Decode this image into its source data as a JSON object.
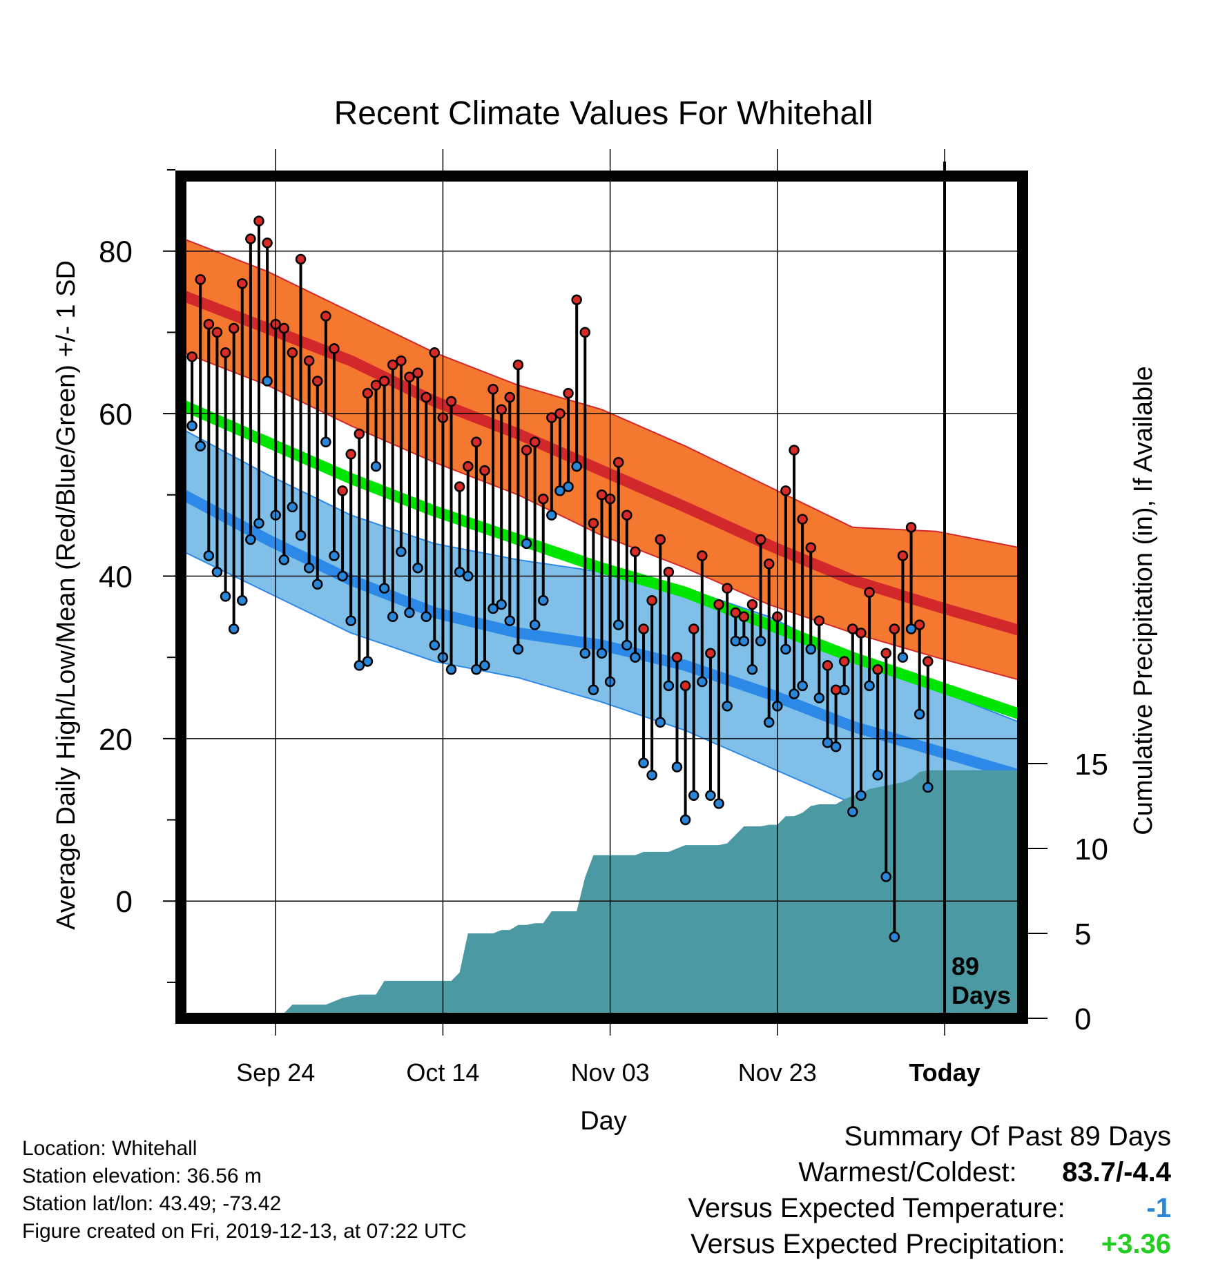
{
  "chart_data": {
    "type": "line",
    "title": "Recent Climate Values For Whitehall",
    "xlabel": "Day",
    "ylabel_left": "Average Daily High/Low/Mean (Red/Blue/Green) +/- 1 SD",
    "ylabel_right": "Cumulative Precipitation (in), If Available",
    "x_ticks": [
      {
        "day": 11,
        "label": "Sep 24"
      },
      {
        "day": 31,
        "label": "Oct 14"
      },
      {
        "day": 51,
        "label": "Nov 03"
      },
      {
        "day": 71,
        "label": "Nov 23"
      },
      {
        "day": 91,
        "label": "Today"
      }
    ],
    "xlim": [
      0,
      100
    ],
    "ylim_left": [
      -14,
      90
    ],
    "y_ticks_left": [
      0,
      20,
      40,
      60,
      80
    ],
    "ylim_right": [
      0,
      15
    ],
    "y_ticks_right": [
      0,
      5,
      10,
      15
    ],
    "today_day": 91,
    "today_label": [
      "89",
      "Days"
    ],
    "grid": true,
    "normals": {
      "high_mean": [
        [
          0,
          74.5
        ],
        [
          10,
          70.5
        ],
        [
          20,
          66.5
        ],
        [
          30,
          61.5
        ],
        [
          40,
          57.5
        ],
        [
          50,
          53.0
        ],
        [
          60,
          48.5
        ],
        [
          70,
          43.8
        ],
        [
          80,
          39.5
        ],
        [
          90,
          36.3
        ],
        [
          100,
          33.3
        ]
      ],
      "high_upper": [
        [
          0,
          81.5
        ],
        [
          10,
          77.5
        ],
        [
          20,
          72.5
        ],
        [
          30,
          67.5
        ],
        [
          40,
          63.5
        ],
        [
          50,
          60.5
        ],
        [
          60,
          56.0
        ],
        [
          70,
          51.0
        ],
        [
          80,
          46.0
        ],
        [
          90,
          45.5
        ],
        [
          100,
          43.5
        ]
      ],
      "high_lower": [
        [
          0,
          67.5
        ],
        [
          10,
          63.5
        ],
        [
          20,
          58.5
        ],
        [
          30,
          54.0
        ],
        [
          40,
          50.0
        ],
        [
          50,
          45.0
        ],
        [
          60,
          41.0
        ],
        [
          70,
          36.5
        ],
        [
          80,
          33.0
        ],
        [
          90,
          30.0
        ],
        [
          100,
          27.2
        ]
      ],
      "mean": [
        [
          0,
          61.0
        ],
        [
          10,
          56.5
        ],
        [
          20,
          52.0
        ],
        [
          30,
          48.0
        ],
        [
          40,
          44.5
        ],
        [
          50,
          41.0
        ],
        [
          60,
          38.0
        ],
        [
          70,
          34.0
        ],
        [
          80,
          30.0
        ],
        [
          90,
          26.5
        ],
        [
          100,
          23.0
        ]
      ],
      "low_mean": [
        [
          0,
          50.0
        ],
        [
          10,
          44.5
        ],
        [
          20,
          39.5
        ],
        [
          30,
          35.5
        ],
        [
          40,
          33.0
        ],
        [
          50,
          31.5
        ],
        [
          60,
          29.0
        ],
        [
          70,
          25.5
        ],
        [
          80,
          21.5
        ],
        [
          90,
          18.5
        ],
        [
          100,
          15.5
        ]
      ],
      "low_upper": [
        [
          0,
          58.0
        ],
        [
          10,
          52.5
        ],
        [
          20,
          47.5
        ],
        [
          30,
          44.0
        ],
        [
          40,
          42.0
        ],
        [
          50,
          40.5
        ],
        [
          60,
          38.5
        ],
        [
          70,
          35.0
        ],
        [
          80,
          30.0
        ],
        [
          90,
          26.0
        ],
        [
          100,
          22.0
        ]
      ],
      "low_lower": [
        [
          0,
          43.0
        ],
        [
          10,
          38.0
        ],
        [
          20,
          33.0
        ],
        [
          30,
          29.5
        ],
        [
          40,
          27.5
        ],
        [
          50,
          24.5
        ],
        [
          60,
          21.0
        ],
        [
          70,
          16.5
        ],
        [
          80,
          12.0
        ],
        [
          90,
          8.0
        ],
        [
          100,
          4.0
        ]
      ]
    },
    "daily_high": [
      67,
      76.5,
      71,
      70,
      67.5,
      70.5,
      76,
      81.5,
      83.7,
      81,
      71,
      70.5,
      67.5,
      79,
      66.5,
      64,
      72,
      68,
      50.5,
      55,
      57.5,
      62.5,
      63.5,
      64,
      66,
      66.5,
      64.5,
      65,
      62,
      67.5,
      59.5,
      61.5,
      51,
      53.5,
      56.5,
      53,
      63,
      60.5,
      62,
      66,
      55.5,
      56.5,
      49.5,
      59.5,
      60,
      62.5,
      74,
      70,
      46.5,
      50,
      49.5,
      54,
      47.5,
      43,
      33.5,
      37,
      44.5,
      40.5,
      30,
      26.5,
      33.5,
      42.5,
      30.5,
      36.5,
      38.5,
      35.5,
      35,
      36.5,
      44.5,
      41.5,
      35,
      50.5,
      55.5,
      47,
      43.5,
      34.5,
      29,
      26,
      29.5,
      33.5,
      33,
      38,
      28.5,
      30.5,
      33.5,
      42.5,
      46,
      34,
      29.5
    ],
    "daily_low": [
      58.5,
      56,
      42.5,
      40.5,
      37.5,
      33.5,
      37,
      44.5,
      46.5,
      64,
      47.5,
      42,
      48.5,
      45,
      41,
      39,
      56.5,
      42.5,
      40,
      34.5,
      29,
      29.5,
      53.5,
      38.5,
      35,
      43,
      35.5,
      41,
      35,
      31.5,
      30,
      28.5,
      40.5,
      40,
      28.5,
      29,
      36,
      36.5,
      34.5,
      31,
      44,
      34,
      37,
      47.5,
      50.5,
      51,
      53.5,
      30.5,
      26,
      30.5,
      27,
      34,
      31.5,
      30,
      17,
      15.5,
      22,
      26.5,
      16.5,
      10,
      13,
      27,
      13,
      12,
      24,
      32,
      32,
      28.5,
      32,
      22,
      24,
      31,
      25.5,
      26.5,
      31,
      25,
      19.5,
      19,
      26,
      11,
      13,
      26.5,
      15.5,
      3,
      -4.4,
      30,
      33.5,
      23,
      14
    ],
    "precip_cumulative": [
      [
        0,
        0
      ],
      [
        8.5,
        0
      ],
      [
        9,
        0.1
      ],
      [
        10,
        0.3
      ],
      [
        11,
        0.3
      ],
      [
        12,
        0.3
      ],
      [
        13,
        0.8
      ],
      [
        14,
        0.8
      ],
      [
        16,
        0.8
      ],
      [
        17,
        0.8
      ],
      [
        18,
        1.0
      ],
      [
        19,
        1.2
      ],
      [
        20,
        1.3
      ],
      [
        21,
        1.4
      ],
      [
        22,
        1.4
      ],
      [
        23,
        1.4
      ],
      [
        24,
        2.2
      ],
      [
        25,
        2.2
      ],
      [
        27,
        2.2
      ],
      [
        28,
        2.2
      ],
      [
        29,
        2.2
      ],
      [
        30,
        2.2
      ],
      [
        31,
        2.2
      ],
      [
        32,
        2.2
      ],
      [
        33,
        2.7
      ],
      [
        34,
        5.0
      ],
      [
        35,
        5.0
      ],
      [
        36,
        5.0
      ],
      [
        37,
        5.0
      ],
      [
        38,
        5.2
      ],
      [
        39,
        5.2
      ],
      [
        40,
        5.5
      ],
      [
        41,
        5.5
      ],
      [
        42,
        5.6
      ],
      [
        43,
        5.6
      ],
      [
        44,
        6.3
      ],
      [
        45,
        6.3
      ],
      [
        46,
        6.3
      ],
      [
        47,
        6.3
      ],
      [
        48,
        8.3
      ],
      [
        49,
        9.6
      ],
      [
        50,
        9.6
      ],
      [
        52,
        9.6
      ],
      [
        53,
        9.6
      ],
      [
        54,
        9.6
      ],
      [
        55,
        9.8
      ],
      [
        56,
        9.8
      ],
      [
        58,
        9.8
      ],
      [
        59,
        10.0
      ],
      [
        60,
        10.2
      ],
      [
        61,
        10.2
      ],
      [
        62,
        10.2
      ],
      [
        63,
        10.2
      ],
      [
        64,
        10.2
      ],
      [
        65,
        10.3
      ],
      [
        66,
        10.8
      ],
      [
        67,
        11.3
      ],
      [
        68,
        11.3
      ],
      [
        69,
        11.3
      ],
      [
        70,
        11.4
      ],
      [
        71,
        11.4
      ],
      [
        72,
        11.9
      ],
      [
        73,
        11.9
      ],
      [
        74,
        12.1
      ],
      [
        75,
        12.5
      ],
      [
        76,
        12.6
      ],
      [
        77,
        12.6
      ],
      [
        78,
        12.6
      ],
      [
        79,
        12.9
      ],
      [
        80,
        13.1
      ],
      [
        81,
        13.2
      ],
      [
        82,
        13.5
      ],
      [
        83,
        13.6
      ],
      [
        84,
        13.7
      ],
      [
        85,
        13.8
      ],
      [
        86,
        13.9
      ],
      [
        87,
        14.1
      ],
      [
        88,
        14.5
      ],
      [
        89,
        14.6
      ],
      [
        90,
        14.6
      ],
      [
        91,
        14.6
      ],
      [
        100,
        14.6
      ]
    ],
    "colors": {
      "high_band": "#f4782f",
      "high_line": "#d2282c",
      "low_band": "#80c0e8",
      "low_line": "#2c89e8",
      "mean_line": "#00e500",
      "overlap": "#901c1c",
      "precip": "#4b9aa3",
      "high_dot": "#d82a26",
      "low_dot": "#2a86d8"
    }
  },
  "footer": {
    "location": "Location: Whitehall",
    "elevation": "Station elevation: 36.56 m",
    "latlon": "Station lat/lon: 43.49; -73.42",
    "created": "Figure created on Fri, 2019-12-13, at 07:22 UTC"
  },
  "summary": {
    "heading": "Summary Of Past 89 Days",
    "warmest_label": "Warmest/Coldest:",
    "warmest_value": "83.7/-4.4",
    "temp_label": "Versus Expected Temperature:",
    "temp_value": "-1",
    "temp_color": "#2a86d8",
    "precip_label": "Versus Expected Precipitation:",
    "precip_value": "+3.36",
    "precip_color": "#22cc22"
  }
}
